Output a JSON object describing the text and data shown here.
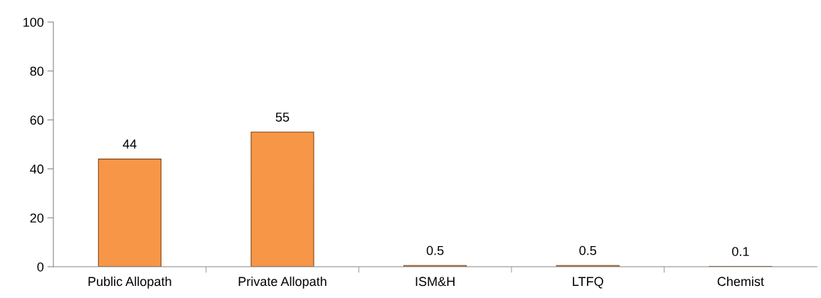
{
  "chart_data": {
    "type": "bar",
    "categories": [
      "Public Allopath",
      "Private Allopath",
      "ISM&H",
      "LTFQ",
      "Chemist"
    ],
    "values": [
      44,
      55,
      0.5,
      0.5,
      0.1
    ],
    "color": "#f79646",
    "ylim": [
      0,
      100
    ],
    "yticks": [
      0,
      20,
      40,
      60,
      80,
      100
    ],
    "data_labels": true,
    "grid": false,
    "legend": false
  }
}
